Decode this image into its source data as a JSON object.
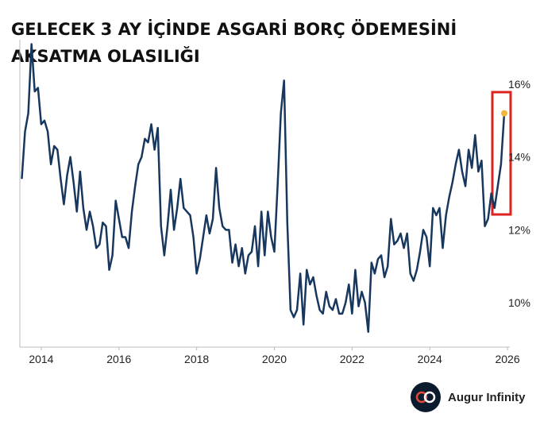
{
  "chart_data": {
    "type": "line",
    "title": [
      "GELECEK 3 AY İÇİNDE ASGARİ BORÇ ÖDEMESİNİ",
      "AKSATMA OLASILIĞI"
    ],
    "x": [
      2013.5,
      2013.583,
      2013.667,
      2013.75,
      2013.833,
      2013.917,
      2014,
      2014.083,
      2014.167,
      2014.25,
      2014.333,
      2014.417,
      2014.5,
      2014.583,
      2014.667,
      2014.75,
      2014.833,
      2014.917,
      2015,
      2015.083,
      2015.167,
      2015.25,
      2015.333,
      2015.417,
      2015.5,
      2015.583,
      2015.667,
      2015.75,
      2015.833,
      2015.917,
      2016,
      2016.083,
      2016.167,
      2016.25,
      2016.333,
      2016.417,
      2016.5,
      2016.583,
      2016.667,
      2016.75,
      2016.833,
      2016.917,
      2017,
      2017.083,
      2017.167,
      2017.25,
      2017.333,
      2017.417,
      2017.5,
      2017.583,
      2017.667,
      2017.75,
      2017.833,
      2017.917,
      2018,
      2018.083,
      2018.167,
      2018.25,
      2018.333,
      2018.417,
      2018.5,
      2018.583,
      2018.667,
      2018.75,
      2018.833,
      2018.917,
      2019,
      2019.083,
      2019.167,
      2019.25,
      2019.333,
      2019.417,
      2019.5,
      2019.583,
      2019.667,
      2019.75,
      2019.833,
      2019.917,
      2020,
      2020.083,
      2020.167,
      2020.25,
      2020.333,
      2020.417,
      2020.5,
      2020.583,
      2020.667,
      2020.75,
      2020.833,
      2020.917,
      2021,
      2021.083,
      2021.167,
      2021.25,
      2021.333,
      2021.417,
      2021.5,
      2021.583,
      2021.667,
      2021.75,
      2021.833,
      2021.917,
      2022,
      2022.083,
      2022.167,
      2022.25,
      2022.333,
      2022.417,
      2022.5,
      2022.583,
      2022.667,
      2022.75,
      2022.833,
      2022.917,
      2023,
      2023.083,
      2023.167,
      2023.25,
      2023.333,
      2023.417,
      2023.5,
      2023.583,
      2023.667,
      2023.75,
      2023.833,
      2023.917,
      2024,
      2024.083,
      2024.167,
      2024.25,
      2024.333,
      2024.417,
      2024.5,
      2024.583,
      2024.667,
      2024.75,
      2024.833,
      2024.917,
      2025,
      2025.083,
      2025.167,
      2025.25,
      2025.333,
      2025.417,
      2025.5,
      2025.583,
      2025.667,
      2025.75,
      2025.833,
      2025.917
    ],
    "series": [
      {
        "color": "#17375e",
        "values": [
          13.4,
          14.7,
          15.2,
          17.1,
          15.8,
          15.9,
          14.9,
          15.0,
          14.7,
          13.8,
          14.3,
          14.2,
          13.4,
          12.7,
          13.5,
          14.0,
          13.3,
          12.5,
          13.6,
          12.6,
          12.0,
          12.5,
          12.1,
          11.5,
          11.6,
          12.2,
          12.1,
          10.9,
          11.3,
          12.8,
          12.3,
          11.8,
          11.8,
          11.5,
          12.5,
          13.2,
          13.8,
          14.0,
          14.5,
          14.4,
          14.9,
          14.2,
          14.8,
          12.1,
          11.3,
          12.1,
          13.1,
          12.0,
          12.6,
          13.4,
          12.6,
          12.5,
          12.4,
          11.8,
          10.8,
          11.2,
          11.8,
          12.4,
          11.9,
          12.3,
          13.7,
          12.6,
          12.1,
          12.0,
          12.0,
          11.1,
          11.6,
          11.0,
          11.5,
          10.8,
          11.3,
          11.4,
          12.1,
          11.0,
          12.5,
          11.3,
          12.5,
          11.8,
          11.4,
          13.2,
          15.2,
          16.1,
          12.2,
          9.8,
          9.6,
          9.8,
          10.8,
          9.4,
          10.9,
          10.5,
          10.7,
          10.2,
          9.8,
          9.7,
          10.3,
          9.9,
          9.8,
          10.1,
          9.7,
          9.7,
          10.0,
          10.5,
          9.7,
          10.9,
          9.9,
          10.3,
          10.0,
          9.2,
          11.1,
          10.8,
          11.2,
          11.3,
          10.7,
          11.0,
          12.3,
          11.6,
          11.7,
          11.9,
          11.5,
          11.9,
          10.8,
          10.6,
          10.9,
          11.4,
          12.0,
          11.8,
          11.0,
          12.6,
          12.4,
          12.6,
          11.5,
          12.4,
          12.9,
          13.3,
          13.8,
          14.2,
          13.6,
          13.2,
          14.2,
          13.7,
          14.6,
          13.6,
          13.9,
          12.1,
          12.3,
          13.0,
          12.6,
          13.2,
          13.8,
          15.2
        ]
      }
    ],
    "highlight_color": "#f0b73c",
    "xlim": [
      2013.45,
      2026.06
    ],
    "xticks": [
      2014,
      2016,
      2018,
      2020,
      2022,
      2024,
      2026
    ],
    "ylim": [
      8.78,
      17.22
    ],
    "yticks": [
      {
        "value": 10,
        "label": "10%"
      },
      {
        "value": 12,
        "label": "12%"
      },
      {
        "value": 14,
        "label": "14%"
      },
      {
        "value": 16,
        "label": "16%"
      }
    ],
    "brand": "Augur Infinity"
  }
}
